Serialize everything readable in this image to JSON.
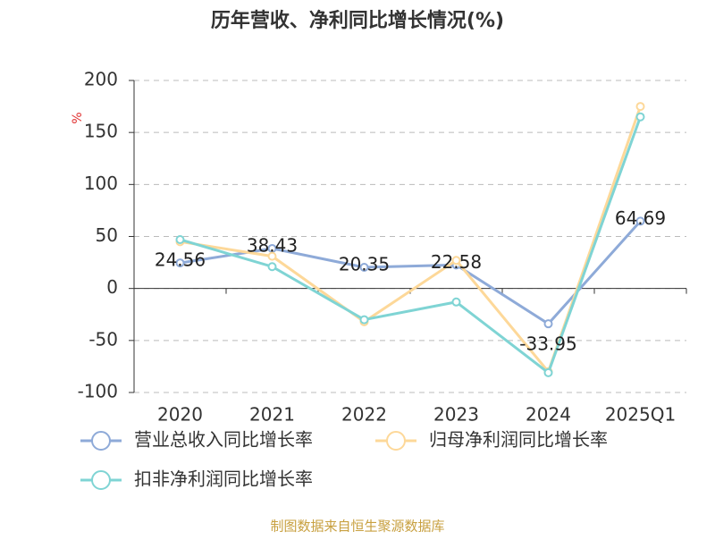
{
  "chart_data": {
    "type": "line",
    "title": "历年营收、净利同比增长情况(%)",
    "y_unit": "%",
    "source": "制图数据来自恒生聚源数据库",
    "categories": [
      "2020",
      "2021",
      "2022",
      "2023",
      "2024",
      "2025Q1"
    ],
    "series": [
      {
        "name": "营业总收入同比增长率",
        "color": "#8eaad8",
        "values": [
          24.56,
          38.43,
          20.35,
          22.58,
          -33.95,
          64.69
        ],
        "show_labels": true
      },
      {
        "name": "归母净利润同比增长率",
        "color": "#fdd899",
        "values": [
          45,
          31,
          -32,
          27,
          -80,
          175
        ],
        "show_labels": false
      },
      {
        "name": "扣非净利润同比增长率",
        "color": "#7fd4d4",
        "values": [
          47,
          21,
          -30,
          -13,
          -81,
          165
        ],
        "show_labels": false
      }
    ],
    "ylim": [
      -100,
      200
    ],
    "yticks": [
      -100,
      -50,
      0,
      50,
      100,
      150,
      200
    ],
    "grid": true,
    "legend_position": "bottom"
  }
}
